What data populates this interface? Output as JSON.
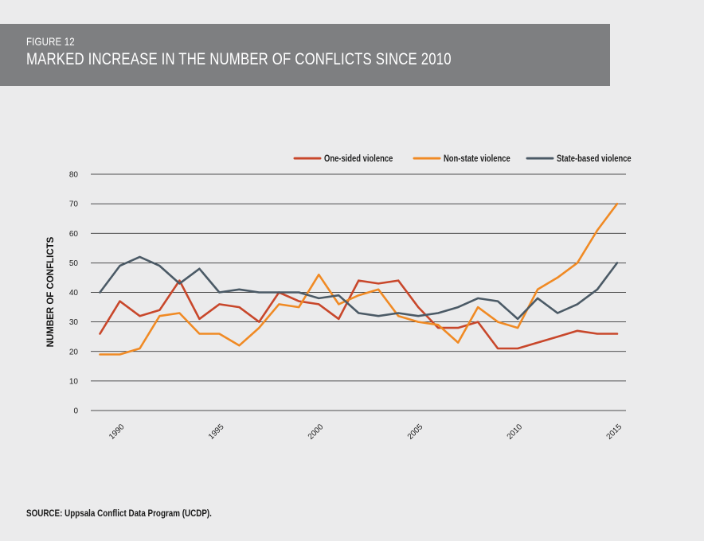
{
  "figure": {
    "label": "FIGURE 12",
    "title": "MARKED INCREASE IN THE NUMBER OF CONFLICTS SINCE 2010"
  },
  "source": "SOURCE: Uppsala Conflict Data Program (UCDP).",
  "chart_data": {
    "type": "line",
    "xlabel": "",
    "ylabel": "NUMBER OF CONFLICTS",
    "ylim": [
      0,
      80
    ],
    "yticks": [
      0,
      10,
      20,
      30,
      40,
      50,
      60,
      70,
      80
    ],
    "xlim": [
      1989,
      2015
    ],
    "xticks": [
      1990,
      1995,
      2000,
      2005,
      2010,
      2015
    ],
    "grid": "horizontal",
    "legend_position": "top-right",
    "x": [
      1989,
      1990,
      1991,
      1992,
      1993,
      1994,
      1995,
      1996,
      1997,
      1998,
      1999,
      2000,
      2001,
      2002,
      2003,
      2004,
      2005,
      2006,
      2007,
      2008,
      2009,
      2010,
      2011,
      2012,
      2013,
      2014,
      2015
    ],
    "series": [
      {
        "name": "One-sided violence",
        "color": "#c8472b",
        "values": [
          26,
          37,
          32,
          34,
          44,
          31,
          36,
          35,
          30,
          40,
          37,
          36,
          31,
          44,
          43,
          44,
          35,
          28,
          28,
          30,
          21,
          21,
          23,
          25,
          27,
          26,
          26
        ]
      },
      {
        "name": "Non-state violence",
        "color": "#f08a24",
        "values": [
          19,
          19,
          21,
          32,
          33,
          26,
          26,
          22,
          28,
          36,
          35,
          46,
          36,
          39,
          41,
          32,
          30,
          29,
          23,
          35,
          30,
          28,
          41,
          45,
          50,
          61,
          70
        ]
      },
      {
        "name": "State-based violence",
        "color": "#4b5a66",
        "values": [
          40,
          49,
          52,
          49,
          43,
          48,
          40,
          41,
          40,
          40,
          40,
          38,
          39,
          33,
          32,
          33,
          32,
          33,
          35,
          38,
          37,
          31,
          38,
          33,
          36,
          41,
          50
        ]
      }
    ]
  }
}
